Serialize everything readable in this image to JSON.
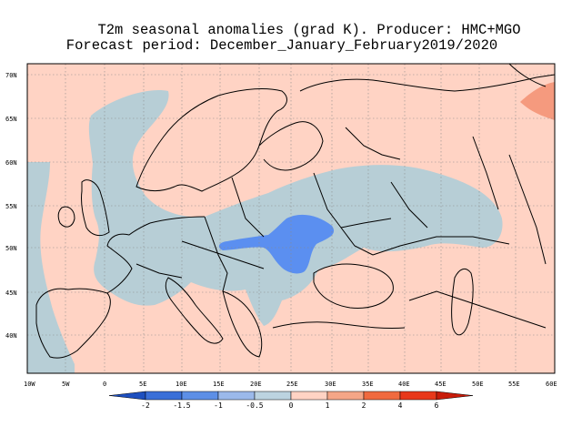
{
  "title": {
    "line1": "T2m seasonal anomalies (grad K). Producer: HMC+MGO",
    "line2": "Forecast period: December_January_February2019/2020"
  },
  "map": {
    "lon_range": [
      -10,
      60
    ],
    "lat_range": [
      35,
      71
    ],
    "lat_ticks": [
      "40N",
      "45N",
      "50N",
      "55N",
      "60N",
      "65N",
      "70N"
    ],
    "lon_ticks": [
      "10W",
      "5W",
      "0",
      "5E",
      "10E",
      "15E",
      "20E",
      "25E",
      "30E",
      "35E",
      "40E",
      "45E",
      "50E",
      "55E",
      "60E"
    ],
    "gridlines": "dotted",
    "background_anomaly_class": "0..1"
  },
  "colorbar": {
    "labels": [
      "-2",
      "-1.5",
      "-1",
      "-0.5",
      "0",
      "1",
      "2",
      "4",
      "6"
    ],
    "colors": [
      "#1d4fbf",
      "#3a6fd8",
      "#5d8fe6",
      "#9bb9ea",
      "#bcd3e0",
      "#ffd3c4",
      "#f5a687",
      "#f06a3f",
      "#e8381a",
      "#c81c0a"
    ]
  },
  "legend_colors": {
    "cold_strong": "#5b8ff0",
    "cold_weak": "#b7ced6",
    "warm_weak": "#ffd3c4",
    "warm_medium": "#f59a7e"
  }
}
